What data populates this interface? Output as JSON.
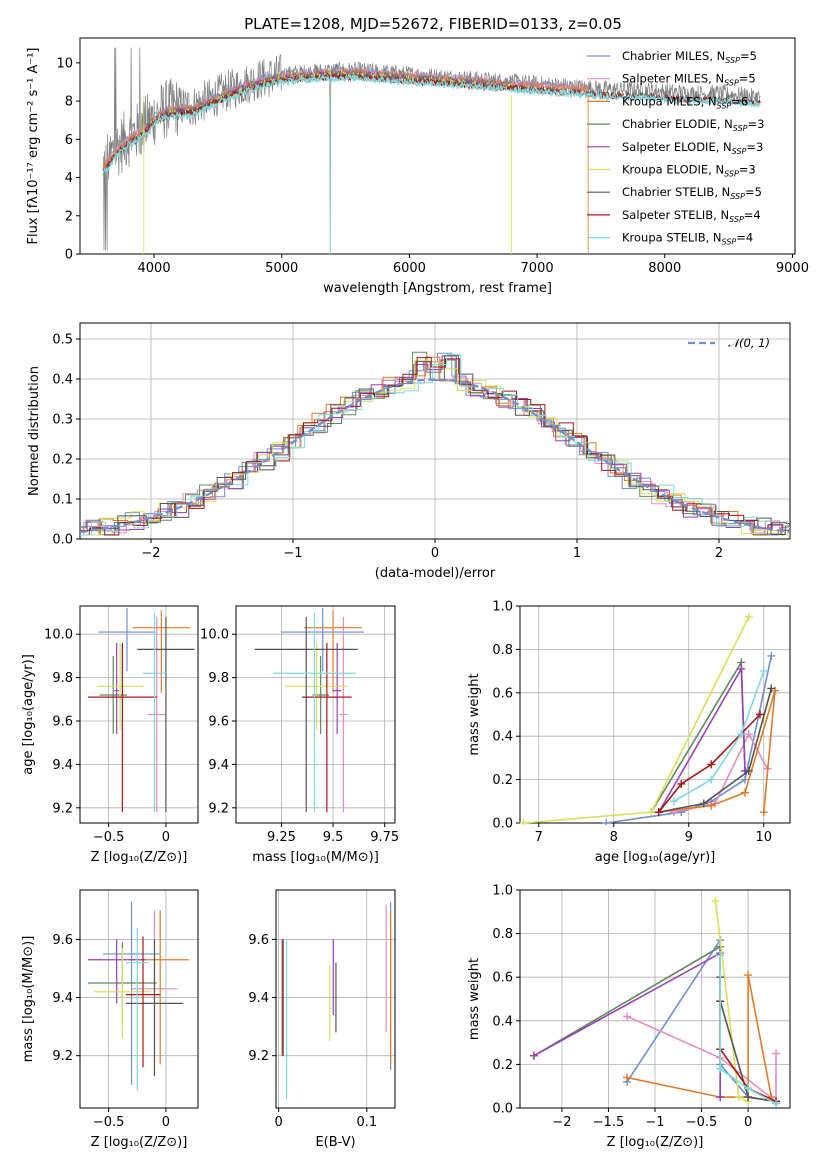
{
  "figure": {
    "title": "PLATE=1208, MJD=52672, FIBERID=0133, z=0.05"
  },
  "colors": {
    "Chabrier MILES": "#6f8fd0",
    "Salpeter MILES": "#e48cc0",
    "Kroupa MILES": "#e07b28",
    "Chabrier ELODIE": "#5c8a5c",
    "Salpeter ELODIE": "#9a3fb8",
    "Kroupa ELODIE": "#d7e05a",
    "Chabrier STELIB": "#555555",
    "Salpeter STELIB": "#a81616",
    "Kroupa STELIB": "#7fd8dc",
    "data": "#808080"
  },
  "chart_data": [
    {
      "id": "spectrum",
      "type": "line",
      "title": "PLATE=1208, MJD=52672, FIBERID=0133, z=0.05",
      "xlabel": "wavelength [Angstrom, rest frame]",
      "ylabel": "Flux [fλ10⁻¹⁷ erg cm⁻² s⁻¹ A⁻¹]",
      "xlim": [
        3420,
        9020
      ],
      "ylim": [
        0,
        11.3
      ],
      "xticks": [
        4000,
        5000,
        6000,
        7000,
        8000,
        9000
      ],
      "yticks": [
        0,
        2,
        4,
        6,
        8,
        10
      ],
      "legend_position": "right",
      "legend": [
        {
          "name": "Chabrier MILES",
          "nssp": "5"
        },
        {
          "name": "Salpeter MILES",
          "nssp": "5"
        },
        {
          "name": "Kroupa MILES",
          "nssp": "6"
        },
        {
          "name": "Chabrier ELODIE",
          "nssp": "3"
        },
        {
          "name": "Salpeter ELODIE",
          "nssp": "3"
        },
        {
          "name": "Kroupa ELODIE",
          "nssp": "3"
        },
        {
          "name": "Chabrier STELIB",
          "nssp": "5"
        },
        {
          "name": "Salpeter STELIB",
          "nssp": "4"
        },
        {
          "name": "Kroupa STELIB",
          "nssp": "4"
        }
      ],
      "continuum": {
        "x": [
          3600,
          3700,
          3800,
          3900,
          4000,
          4100,
          4200,
          4300,
          4400,
          4600,
          4800,
          5000,
          5200,
          5400,
          5600,
          5800,
          6000,
          6200,
          6400,
          6600,
          6800,
          7000,
          7200,
          7400,
          7600,
          7800,
          8000,
          8200,
          8400,
          8600,
          8750
        ],
        "y": [
          4.6,
          5.5,
          6.1,
          6.5,
          7.2,
          7.6,
          7.7,
          7.7,
          8.0,
          8.6,
          9.1,
          9.4,
          9.5,
          9.6,
          9.6,
          9.5,
          9.4,
          9.3,
          9.2,
          9.1,
          9.0,
          8.9,
          8.8,
          8.7,
          8.6,
          8.6,
          8.5,
          8.4,
          8.4,
          8.3,
          8.2
        ]
      },
      "model_range": {
        "Chabrier MILES": [
          3600,
          7400
        ],
        "Salpeter MILES": [
          3600,
          7400
        ],
        "Kroupa MILES": [
          3600,
          7400
        ],
        "Chabrier ELODIE": [
          3900,
          6800
        ],
        "Salpeter ELODIE": [
          3900,
          6800
        ],
        "Kroupa ELODIE": [
          3900,
          6800
        ],
        "Chabrier STELIB": [
          3600,
          8750
        ],
        "Salpeter STELIB": [
          3600,
          8750
        ],
        "Kroupa STELIB": [
          3600,
          8750
        ]
      }
    },
    {
      "id": "residuals",
      "type": "line",
      "xlabel": "(data-model)/error",
      "ylabel": "Normed distribution",
      "xlim": [
        -2.5,
        2.5
      ],
      "ylim": [
        0,
        0.54
      ],
      "xticks": [
        -2,
        -1,
        0,
        1,
        2
      ],
      "yticks": [
        0.0,
        0.1,
        0.2,
        0.3,
        0.4,
        0.5
      ],
      "legend_position": "top-right",
      "legend_label": "𝒩(0, 1)",
      "grid": true
    },
    {
      "id": "age-vs-z",
      "type": "scatter",
      "xlabel": "Z [log₁₀(Z/Z⊙)]",
      "ylabel": "age  [log₁₀(age/yr)]",
      "xlim": [
        -0.75,
        0.28
      ],
      "ylim": [
        9.13,
        10.13
      ],
      "xticks": [
        -0.5,
        0.0
      ],
      "yticks": [
        9.2,
        9.4,
        9.6,
        9.8,
        10.0
      ],
      "grid": true,
      "points": [
        {
          "series": "Chabrier MILES",
          "x": -0.34,
          "y": 10.01,
          "xerr": 0.25,
          "yerr": [
            0.18,
            0.11
          ]
        },
        {
          "series": "Salpeter MILES",
          "x": -0.08,
          "y": 9.63,
          "xerr": 0.08,
          "yerr": [
            0.45,
            0.45
          ]
        },
        {
          "series": "Kroupa MILES",
          "x": -0.04,
          "y": 10.03,
          "xerr": 0.25,
          "yerr": [
            0.3,
            0.08
          ]
        },
        {
          "series": "Chabrier ELODIE",
          "x": -0.46,
          "y": 9.72,
          "xerr": 0.12,
          "yerr": [
            0.18,
            0.18
          ]
        },
        {
          "series": "Salpeter ELODIE",
          "x": -0.43,
          "y": 9.74,
          "xerr": 0.02,
          "yerr": [
            0.2,
            0.22
          ]
        },
        {
          "series": "Kroupa ELODIE",
          "x": -0.4,
          "y": 9.76,
          "xerr": 0.2,
          "yerr": [
            0.2,
            0.2
          ]
        },
        {
          "series": "Chabrier STELIB",
          "x": 0.0,
          "y": 9.93,
          "xerr": 0.25,
          "yerr": [
            0.75,
            0.15
          ]
        },
        {
          "series": "Salpeter STELIB",
          "x": -0.38,
          "y": 9.71,
          "xerr": 0.3,
          "yerr": [
            0.53,
            0.25
          ]
        },
        {
          "series": "Kroupa STELIB",
          "x": -0.1,
          "y": 9.82,
          "xerr": 0.1,
          "yerr": [
            0.64,
            0.28
          ]
        }
      ]
    },
    {
      "id": "age-vs-mass",
      "type": "scatter",
      "xlabel": "mass [log₁₀(M/M⊙)]",
      "ylabel": "",
      "xlim": [
        9.03,
        9.8
      ],
      "ylim": [
        9.13,
        10.13
      ],
      "xticks": [
        9.25,
        9.5,
        9.75
      ],
      "yticks": [
        9.2,
        9.4,
        9.6,
        9.8,
        10.0
      ],
      "grid": true,
      "points": [
        {
          "series": "Chabrier MILES",
          "x": 9.45,
          "y": 10.01,
          "xerr": 0.2,
          "yerr": [
            0.18,
            0.11
          ]
        },
        {
          "series": "Salpeter MILES",
          "x": 9.55,
          "y": 9.63,
          "xerr": 0.02,
          "yerr": [
            0.45,
            0.45
          ]
        },
        {
          "series": "Kroupa MILES",
          "x": 9.5,
          "y": 10.03,
          "xerr": 0.14,
          "yerr": [
            0.3,
            0.08
          ]
        },
        {
          "series": "Chabrier ELODIE",
          "x": 9.44,
          "y": 9.72,
          "xerr": 0.04,
          "yerr": [
            0.18,
            0.18
          ]
        },
        {
          "series": "Salpeter ELODIE",
          "x": 9.52,
          "y": 9.74,
          "xerr": 0.02,
          "yerr": [
            0.2,
            0.22
          ]
        },
        {
          "series": "Kroupa ELODIE",
          "x": 9.42,
          "y": 9.76,
          "xerr": 0.15,
          "yerr": [
            0.2,
            0.2
          ]
        },
        {
          "series": "Chabrier STELIB",
          "x": 9.37,
          "y": 9.93,
          "xerr": 0.25,
          "yerr": [
            0.75,
            0.15
          ]
        },
        {
          "series": "Salpeter STELIB",
          "x": 9.47,
          "y": 9.71,
          "xerr": 0.12,
          "yerr": [
            0.53,
            0.25
          ]
        },
        {
          "series": "Kroupa STELIB",
          "x": 9.41,
          "y": 9.82,
          "xerr": 0.2,
          "yerr": [
            0.64,
            0.28
          ]
        }
      ]
    },
    {
      "id": "weight-vs-age",
      "type": "line",
      "xlabel": "age  [log₁₀(age/yr)]",
      "ylabel": "mass weight",
      "xlim": [
        6.75,
        10.35
      ],
      "ylim": [
        0,
        1.0
      ],
      "xticks": [
        7,
        8,
        9,
        10
      ],
      "yticks": [
        0.0,
        0.2,
        0.4,
        0.6,
        0.8,
        1.0
      ],
      "grid": true,
      "series": [
        {
          "name": "Chabrier MILES",
          "x": [
            7.9,
            8.9,
            9.3,
            9.75,
            10.1
          ],
          "y": [
            0.0,
            0.05,
            0.1,
            0.2,
            0.77
          ]
        },
        {
          "name": "Salpeter MILES",
          "x": [
            8.8,
            9.35,
            9.8,
            10.05
          ],
          "y": [
            0.05,
            0.09,
            0.41,
            0.25
          ]
        },
        {
          "name": "Kroupa MILES",
          "x": [
            8.6,
            9.3,
            9.75,
            10.15,
            10.0
          ],
          "y": [
            0.05,
            0.08,
            0.14,
            0.61,
            0.05
          ]
        },
        {
          "name": "Chabrier ELODIE",
          "x": [
            8.5,
            9.7,
            9.75
          ],
          "y": [
            0.05,
            0.74,
            0.24
          ]
        },
        {
          "name": "Salpeter ELODIE",
          "x": [
            8.6,
            9.7,
            9.75
          ],
          "y": [
            0.05,
            0.71,
            0.24
          ]
        },
        {
          "name": "Kroupa ELODIE",
          "x": [
            6.8,
            8.5,
            9.8
          ],
          "y": [
            0.0,
            0.05,
            0.95
          ]
        },
        {
          "name": "Chabrier STELIB",
          "x": [
            8.6,
            9.2,
            9.8,
            10.1
          ],
          "y": [
            0.05,
            0.09,
            0.24,
            0.62
          ]
        },
        {
          "name": "Salpeter STELIB",
          "x": [
            8.6,
            8.9,
            9.3,
            9.95
          ],
          "y": [
            0.05,
            0.18,
            0.27,
            0.5
          ]
        },
        {
          "name": "Kroupa STELIB",
          "x": [
            8.8,
            9.3,
            9.7,
            10.0
          ],
          "y": [
            0.1,
            0.2,
            0.41,
            0.7
          ]
        }
      ]
    },
    {
      "id": "mass-vs-z",
      "type": "scatter",
      "xlabel": "Z [log₁₀(Z/Z⊙)]",
      "ylabel": "mass [log₁₀(M/M⊙)]",
      "xlim": [
        -0.75,
        0.28
      ],
      "ylim": [
        9.02,
        9.77
      ],
      "xticks": [
        -0.5,
        0.0
      ],
      "yticks": [
        9.2,
        9.4,
        9.6
      ],
      "grid": true,
      "points": [
        {
          "series": "Chabrier MILES",
          "x": -0.3,
          "y": 9.55,
          "xerr": 0.25,
          "yerr": [
            0.45,
            0.18
          ]
        },
        {
          "series": "Salpeter MILES",
          "x": -0.1,
          "y": 9.43,
          "xerr": 0.2,
          "yerr": [
            0.25,
            0.27
          ]
        },
        {
          "series": "Kroupa MILES",
          "x": -0.05,
          "y": 9.53,
          "xerr": 0.25,
          "yerr": [
            0.36,
            0.17
          ]
        },
        {
          "series": "Chabrier ELODIE",
          "x": -0.38,
          "y": 9.45,
          "xerr": 0.3,
          "yerr": [
            0.15,
            0.14
          ]
        },
        {
          "series": "Salpeter ELODIE",
          "x": -0.43,
          "y": 9.53,
          "xerr": 0.25,
          "yerr": [
            0.15,
            0.07
          ]
        },
        {
          "series": "Kroupa ELODIE",
          "x": -0.38,
          "y": 9.42,
          "xerr": 0.25,
          "yerr": [
            0.16,
            0.15
          ]
        },
        {
          "series": "Chabrier STELIB",
          "x": -0.1,
          "y": 9.38,
          "xerr": 0.25,
          "yerr": [
            0.25,
            0.22
          ]
        },
        {
          "series": "Salpeter STELIB",
          "x": -0.2,
          "y": 9.41,
          "xerr": 0.15,
          "yerr": [
            0.25,
            0.2
          ]
        },
        {
          "series": "Kroupa STELIB",
          "x": -0.25,
          "y": 9.52,
          "xerr": 0.1,
          "yerr": [
            0.44,
            0.12
          ]
        }
      ]
    },
    {
      "id": "mass-vs-ebv",
      "type": "scatter",
      "xlabel": "E(B-V)",
      "ylabel": "",
      "xlim": [
        -0.003,
        0.132
      ],
      "ylim": [
        9.02,
        9.77
      ],
      "xticks": [
        0.0,
        0.1
      ],
      "yticks": [
        9.2,
        9.4,
        9.6
      ],
      "grid": true,
      "points": [
        {
          "series": "Chabrier MILES",
          "x": 0.127,
          "y": 9.55,
          "yerr": [
            0.4,
            0.18
          ]
        },
        {
          "series": "Salpeter MILES",
          "x": 0.122,
          "y": 9.45,
          "yerr": [
            0.17,
            0.27
          ]
        },
        {
          "series": "Kroupa MILES",
          "x": 0.127,
          "y": 9.42,
          "yerr": [
            0.25,
            0.27
          ]
        },
        {
          "series": "Chabrier ELODIE",
          "x": 0.004,
          "y": 9.42,
          "yerr": [
            0.22,
            0.18
          ]
        },
        {
          "series": "Salpeter ELODIE",
          "x": 0.062,
          "y": 9.52,
          "yerr": [
            0.18,
            0.08
          ]
        },
        {
          "series": "Kroupa ELODIE",
          "x": 0.058,
          "y": 9.42,
          "yerr": [
            0.17,
            0.09
          ]
        },
        {
          "series": "Chabrier STELIB",
          "x": 0.065,
          "y": 9.4,
          "yerr": [
            0.12,
            0.12
          ]
        },
        {
          "series": "Salpeter STELIB",
          "x": 0.005,
          "y": 9.4,
          "yerr": [
            0.2,
            0.2
          ]
        },
        {
          "series": "Kroupa STELIB",
          "x": 0.009,
          "y": 9.35,
          "yerr": [
            0.3,
            0.25
          ]
        }
      ]
    },
    {
      "id": "weight-vs-z",
      "type": "line",
      "xlabel": "Z [log₁₀(Z/Z⊙)]",
      "ylabel": "mass weight",
      "xlim": [
        -2.45,
        0.45
      ],
      "ylim": [
        0,
        1.0
      ],
      "xticks": [
        -2.0,
        -1.5,
        -1.0,
        -0.5,
        0.0
      ],
      "yticks": [
        0.0,
        0.2,
        0.4,
        0.6,
        0.8,
        1.0
      ],
      "grid": true,
      "series": [
        {
          "name": "Chabrier MILES",
          "x": [
            -1.3,
            -0.3,
            -0.3,
            0.0,
            0.3
          ],
          "y": [
            0.12,
            0.77,
            0.2,
            0.05,
            0.03
          ]
        },
        {
          "name": "Salpeter MILES",
          "x": [
            -1.3,
            -0.3,
            0.3,
            0.3
          ],
          "y": [
            0.42,
            0.23,
            0.03,
            0.25
          ]
        },
        {
          "name": "Kroupa MILES",
          "x": [
            -1.3,
            -0.3,
            0.0,
            0.0,
            0.25
          ],
          "y": [
            0.14,
            0.05,
            0.05,
            0.61,
            0.05
          ]
        },
        {
          "name": "Chabrier ELODIE",
          "x": [
            -2.3,
            -0.3,
            -0.3
          ],
          "y": [
            0.24,
            0.74,
            0.05
          ]
        },
        {
          "name": "Salpeter ELODIE",
          "x": [
            -2.3,
            -0.3,
            -0.3
          ],
          "y": [
            0.24,
            0.71,
            0.05
          ]
        },
        {
          "name": "Kroupa ELODIE",
          "x": [
            -0.35,
            -0.1,
            0.0
          ],
          "y": [
            0.95,
            0.05,
            0.03
          ]
        },
        {
          "name": "Chabrier STELIB",
          "x": [
            -0.3,
            -0.3,
            0.0,
            0.3
          ],
          "y": [
            0.6,
            0.49,
            0.05,
            0.03
          ]
        },
        {
          "name": "Salpeter STELIB",
          "x": [
            -0.3,
            -0.3,
            0.0,
            0.3
          ],
          "y": [
            0.49,
            0.27,
            0.09,
            0.03
          ]
        },
        {
          "name": "Kroupa STELIB",
          "x": [
            -0.3,
            -0.3,
            0.0,
            0.3
          ],
          "y": [
            0.7,
            0.18,
            0.09,
            0.02
          ]
        }
      ]
    }
  ]
}
